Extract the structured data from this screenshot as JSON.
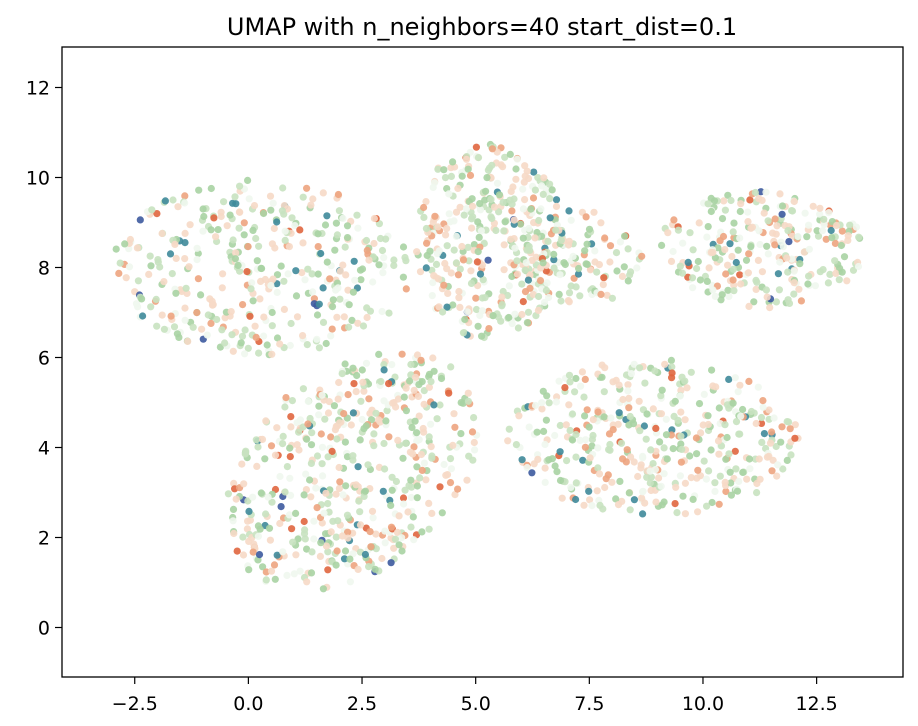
{
  "chart_data": {
    "type": "scatter",
    "title": "UMAP with n_neighbors=40 start_dist=0.1",
    "xlabel": "",
    "ylabel": "",
    "xlim": [
      -4.1,
      14.4
    ],
    "ylim": [
      -1.1,
      12.9
    ],
    "x_ticks": [
      -2.5,
      0.0,
      2.5,
      5.0,
      7.5,
      10.0,
      12.5
    ],
    "x_tick_labels": [
      "−2.5",
      "0.0",
      "2.5",
      "5.0",
      "7.5",
      "10.0",
      "12.5"
    ],
    "y_ticks": [
      0,
      2,
      4,
      6,
      8,
      10,
      12
    ],
    "y_tick_labels": [
      "0",
      "2",
      "4",
      "6",
      "8",
      "10",
      "12"
    ],
    "grid": false,
    "legend": "none",
    "colormap": [
      "#f0f7ee",
      "#c8e2c0",
      "#a9d3a3",
      "#f6d9c7",
      "#eda47f",
      "#e0663f",
      "#3f8a9a",
      "#3d5a9e"
    ],
    "clusters": [
      {
        "center": [
          0.3,
          8.0
        ],
        "rx": 3.3,
        "ry": 1.95,
        "points": 380
      },
      {
        "center": [
          5.3,
          8.6
        ],
        "rx": 1.65,
        "ry": 2.2,
        "points": 360
      },
      {
        "center": [
          7.2,
          8.2
        ],
        "rx": 1.5,
        "ry": 1.1,
        "points": 120
      },
      {
        "center": [
          11.3,
          8.4
        ],
        "rx": 2.3,
        "ry": 1.3,
        "points": 260
      },
      {
        "center": [
          2.3,
          3.5
        ],
        "rx": 2.8,
        "ry": 2.5,
        "points": 520
      },
      {
        "center": [
          8.9,
          4.2
        ],
        "rx": 3.2,
        "ry": 1.75,
        "points": 420
      }
    ]
  }
}
